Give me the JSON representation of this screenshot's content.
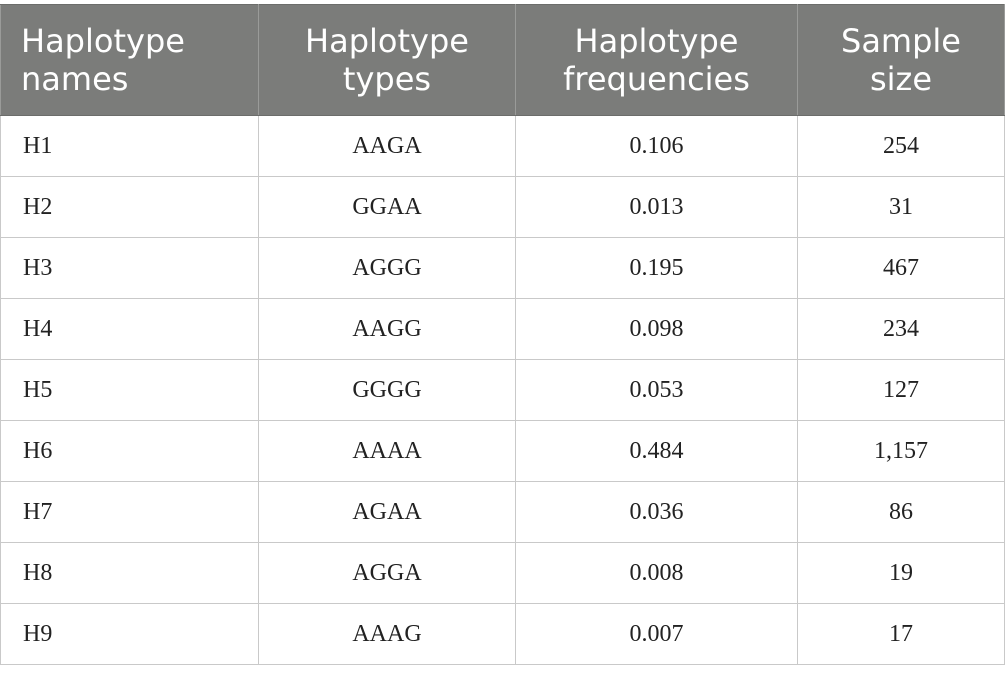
{
  "table": {
    "headers": [
      {
        "line1": "Haplotype",
        "line2": "names"
      },
      {
        "line1": "Haplotype",
        "line2": "types"
      },
      {
        "line1": "Haplotype",
        "line2": "frequencies"
      },
      {
        "line1": "Sample",
        "line2": "size"
      }
    ],
    "rows": [
      {
        "name": "H1",
        "type": "AAGA",
        "frequency": "0.106",
        "size": "254"
      },
      {
        "name": "H2",
        "type": "GGAA",
        "frequency": "0.013",
        "size": "31"
      },
      {
        "name": "H3",
        "type": "AGGG",
        "frequency": "0.195",
        "size": "467"
      },
      {
        "name": "H4",
        "type": "AAGG",
        "frequency": "0.098",
        "size": "234"
      },
      {
        "name": "H5",
        "type": "GGGG",
        "frequency": "0.053",
        "size": "127"
      },
      {
        "name": "H6",
        "type": "AAAA",
        "frequency": "0.484",
        "size": "1,157"
      },
      {
        "name": "H7",
        "type": "AGAA",
        "frequency": "0.036",
        "size": "86"
      },
      {
        "name": "H8",
        "type": "AGGA",
        "frequency": "0.008",
        "size": "19"
      },
      {
        "name": "H9",
        "type": "AAAG",
        "frequency": "0.007",
        "size": "17"
      }
    ]
  },
  "colors": {
    "header_background": "#7b7c7a",
    "header_text": "#ffffff",
    "grid_line": "#c9c9c9"
  }
}
